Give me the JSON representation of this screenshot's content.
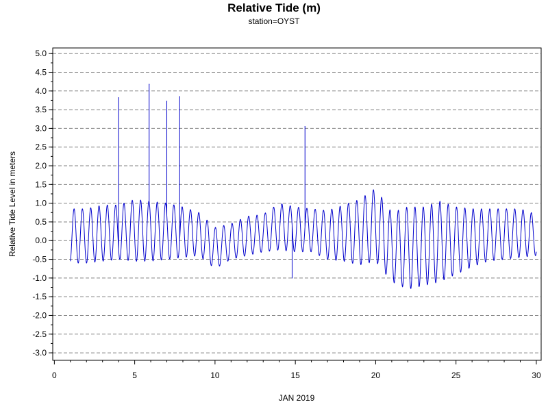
{
  "chart_data": {
    "type": "line",
    "title": "Relative Tide (m)",
    "subtitle": "station=OYST",
    "xlabel": "JAN 2019",
    "ylabel": "Relative Tide Level in meters",
    "xlim": [
      -0.1,
      30.3
    ],
    "ylim": [
      -3.2,
      5.15
    ],
    "x_ticks": [
      0,
      5,
      10,
      15,
      20,
      25,
      30
    ],
    "y_ticks": [
      5.0,
      4.5,
      4.0,
      3.5,
      3.0,
      2.5,
      2.0,
      1.5,
      1.0,
      0.5,
      0.0,
      -0.5,
      -1.0,
      -1.5,
      -2.0,
      -2.5,
      -3.0
    ],
    "x_tick_labels": [
      "0",
      "5",
      "10",
      "15",
      "20",
      "25",
      "30"
    ],
    "y_tick_labels": [
      "5.0",
      "4.5",
      "4.0",
      "3.5",
      "3.0",
      "2.5",
      "2.0",
      "1.5",
      "1.0",
      "0.5",
      "0.0",
      "-0.5",
      "-1.0",
      "-1.5",
      "-2.0",
      "-2.5",
      "-3.0"
    ],
    "grid": "horizontal-dashed",
    "series": [
      {
        "color": "#0000cc",
        "tidal_envelope": {
          "x": [
            1,
            2,
            3,
            4,
            5,
            6,
            7,
            8,
            9,
            10,
            11,
            12,
            13,
            14,
            15,
            16,
            17,
            18,
            19,
            20,
            21,
            22,
            23,
            24,
            25,
            26,
            27,
            28,
            29,
            30
          ],
          "high": [
            0.85,
            0.85,
            0.95,
            0.95,
            1.1,
            1.05,
            1.0,
            0.9,
            0.75,
            0.35,
            0.45,
            0.65,
            0.7,
            1.0,
            0.9,
            0.85,
            0.8,
            0.95,
            1.1,
            1.4,
            0.75,
            0.9,
            0.9,
            1.05,
            0.9,
            0.85,
            0.85,
            0.85,
            0.85,
            0.7
          ],
          "low": [
            -0.6,
            -0.6,
            -0.55,
            -0.5,
            -0.55,
            -0.55,
            -0.5,
            -0.45,
            -0.4,
            -0.75,
            -0.5,
            -0.4,
            -0.3,
            -0.25,
            -0.3,
            -0.3,
            -0.5,
            -0.55,
            -0.65,
            -0.55,
            -1.1,
            -1.3,
            -1.2,
            -1.1,
            -0.9,
            -0.7,
            -0.55,
            -0.5,
            -0.45,
            -0.4
          ]
        },
        "spikes": [
          {
            "x": 4.0,
            "y": 3.82
          },
          {
            "x": 5.9,
            "y": 4.18
          },
          {
            "x": 7.0,
            "y": 3.73
          },
          {
            "x": 7.8,
            "y": 3.85
          },
          {
            "x": 14.8,
            "y": -1.0
          },
          {
            "x": 15.6,
            "y": 3.05
          }
        ]
      }
    ]
  }
}
